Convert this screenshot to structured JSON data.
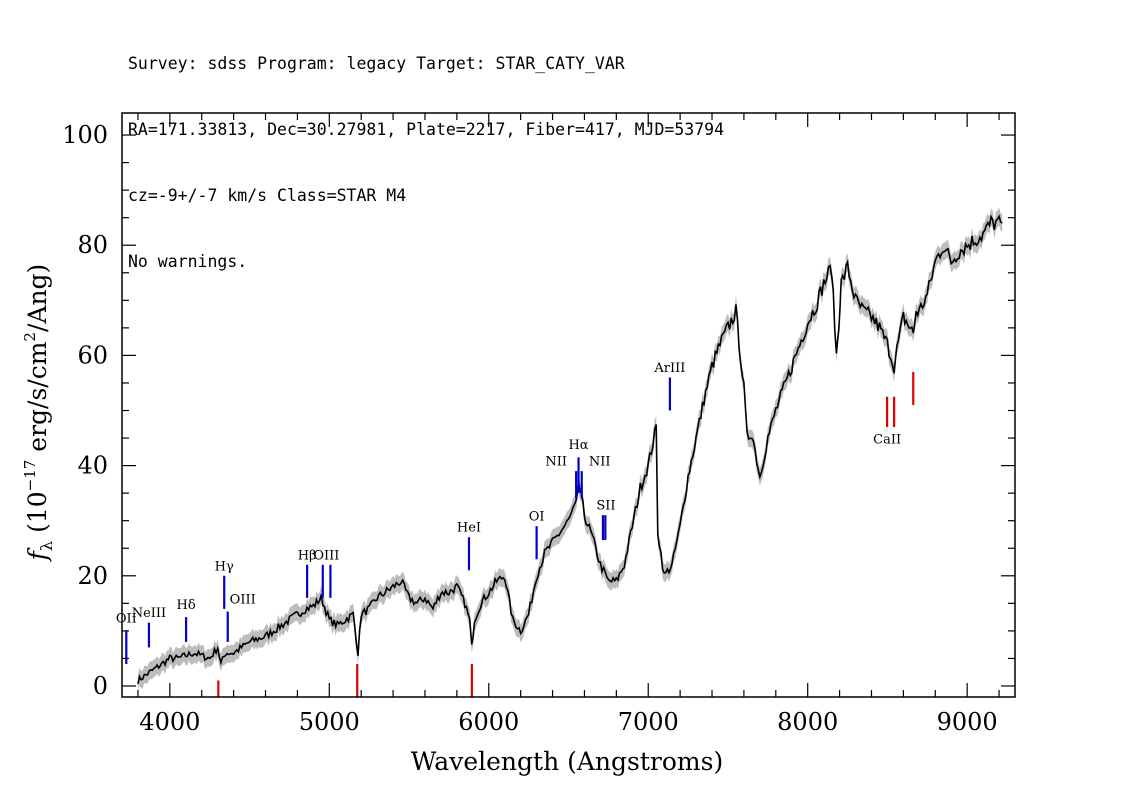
{
  "header": {
    "line1": "Survey: sdss Program: legacy Target: STAR_CATY_VAR",
    "line2": "RA=171.33813, Dec=30.27981, Plate=2217, Fiber=417, MJD=53794",
    "line3": "cz=-9+/-7 km/s Class=STAR M4",
    "line4": "No warnings."
  },
  "colors": {
    "spectrum": "#000000",
    "error_band": "#bdbdbd",
    "emission_lines": "#0000cc",
    "absorption_lines": "#dd0000",
    "axes": "#000000"
  },
  "chart_data": {
    "type": "line",
    "xlabel": "Wavelength (Angstroms)",
    "ylabel": "f_λ (10^-17 erg/s/cm^2/Ang)",
    "ylabel_parts": {
      "f": "f",
      "sub": "λ",
      "pre": "(10",
      "exp1": "−17",
      "mid": " erg/s/cm",
      "exp2": "2",
      "post": "/Ang)"
    },
    "xlim": [
      3700,
      9300
    ],
    "ylim": [
      -2,
      104
    ],
    "xticks": [
      4000,
      5000,
      6000,
      7000,
      8000,
      9000
    ],
    "yticks": [
      0,
      20,
      40,
      60,
      80,
      100
    ],
    "grid": false,
    "spectrum": {
      "x": [
        3800,
        3850,
        3900,
        3950,
        4000,
        4050,
        4100,
        4150,
        4200,
        4250,
        4300,
        4320,
        4350,
        4400,
        4450,
        4500,
        4550,
        4600,
        4650,
        4700,
        4750,
        4800,
        4850,
        4900,
        4950,
        5000,
        5050,
        5100,
        5150,
        5180,
        5200,
        5250,
        5300,
        5350,
        5400,
        5450,
        5500,
        5550,
        5600,
        5650,
        5700,
        5750,
        5800,
        5850,
        5880,
        5893,
        5910,
        5950,
        6000,
        6050,
        6100,
        6150,
        6200,
        6250,
        6300,
        6350,
        6400,
        6450,
        6500,
        6550,
        6563,
        6600,
        6650,
        6700,
        6750,
        6800,
        6850,
        6900,
        6950,
        7000,
        7050,
        7060,
        7080,
        7100,
        7150,
        7200,
        7250,
        7300,
        7350,
        7400,
        7450,
        7500,
        7550,
        7600,
        7620,
        7650,
        7700,
        7750,
        7800,
        7850,
        7900,
        7950,
        8000,
        8050,
        8100,
        8150,
        8180,
        8195,
        8210,
        8250,
        8300,
        8350,
        8400,
        8450,
        8500,
        8542,
        8560,
        8600,
        8662,
        8680,
        8700,
        8750,
        8800,
        8850,
        8900,
        8950,
        9000,
        9050,
        9100,
        9150,
        9200,
        9220
      ],
      "y": [
        1,
        2,
        3,
        4,
        5,
        5,
        5.5,
        6,
        5.5,
        5,
        7,
        4,
        6,
        6,
        7,
        8,
        8.5,
        9,
        10,
        11,
        12,
        13,
        14,
        14.5,
        16,
        12,
        11,
        12,
        13,
        6,
        13,
        14,
        16,
        17,
        18,
        19,
        16,
        15,
        16,
        14,
        17,
        17,
        18,
        15,
        12,
        7,
        12,
        15,
        17,
        19,
        20,
        12,
        10,
        13,
        20,
        24,
        26,
        28,
        30,
        33,
        37,
        31,
        27,
        22,
        19,
        19,
        22,
        29,
        36,
        40,
        47,
        28,
        24,
        20,
        22,
        29,
        38,
        45,
        52,
        58,
        62,
        65,
        68,
        54,
        45,
        46,
        38,
        45,
        50,
        54,
        58,
        62,
        66,
        69,
        73,
        76,
        60,
        66,
        73,
        76,
        70,
        68,
        67,
        65,
        62,
        58,
        61,
        67,
        64,
        68,
        68,
        71,
        77,
        80,
        77,
        79,
        80,
        81,
        82,
        84,
        84,
        84
      ],
      "error_halfwidth": 1.6
    },
    "line_markers": [
      {
        "label": "OII",
        "x": 3727,
        "kind": "emission",
        "y0": 4,
        "y1": 10,
        "label_y": 11.5
      },
      {
        "label": "NeIII",
        "x": 3869,
        "kind": "emission",
        "y0": 7,
        "y1": 11.5,
        "label_y": 12.5
      },
      {
        "label": "Hδ",
        "x": 4102,
        "kind": "emission",
        "y0": 8,
        "y1": 12.5,
        "label_y": 14
      },
      {
        "label": "Hγ",
        "x": 4341,
        "kind": "emission",
        "y0": 14,
        "y1": 20,
        "label_y": 21
      },
      {
        "label": "OIII",
        "x": 4363,
        "kind": "emission",
        "y0": 8,
        "y1": 13.5,
        "label_y": 15,
        "label_dx": 15
      },
      {
        "label": "Hβ",
        "x": 4861,
        "kind": "emission",
        "y0": 16,
        "y1": 22,
        "label_y": 23
      },
      {
        "label": "OIII",
        "x": 4959,
        "kind": "emission",
        "y0": 16,
        "y1": 22,
        "label_y": -1
      },
      {
        "label": "OIII",
        "x": 5007,
        "kind": "emission",
        "y0": 16,
        "y1": 22,
        "label_y": 23,
        "label_dx": -4
      },
      {
        "label": "HeI",
        "x": 5876,
        "kind": "emission",
        "y0": 21,
        "y1": 27,
        "label_y": 28
      },
      {
        "label": "OI",
        "x": 6300,
        "kind": "emission",
        "y0": 23,
        "y1": 29,
        "label_y": 30
      },
      {
        "label": "NII",
        "x": 6548,
        "kind": "emission",
        "y0": 34,
        "y1": 39,
        "label_y": 40,
        "label_dx": -20
      },
      {
        "label": "Hα",
        "x": 6563,
        "kind": "emission",
        "y0": 35,
        "y1": 41.5,
        "label_y": 43
      },
      {
        "label": "NII",
        "x": 6583,
        "kind": "emission",
        "y0": 34,
        "y1": 39,
        "label_y": 40,
        "label_dx": 18
      },
      {
        "label": "SII",
        "x": 6716,
        "kind": "emission",
        "y0": 26.5,
        "y1": 31,
        "label_y": 32,
        "label_dx": 3
      },
      {
        "label": "SII",
        "x": 6731,
        "kind": "emission",
        "y0": 26.5,
        "y1": 31,
        "label_y": -1
      },
      {
        "label": "ArIII",
        "x": 7136,
        "kind": "emission",
        "y0": 50,
        "y1": 56,
        "label_y": 57
      },
      {
        "label": "",
        "x": 4304,
        "kind": "absorption",
        "y0": -2,
        "y1": 1
      },
      {
        "label": "",
        "x": 5175,
        "kind": "absorption",
        "y0": -2,
        "y1": 4
      },
      {
        "label": "",
        "x": 5894,
        "kind": "absorption",
        "y0": -2,
        "y1": 4
      },
      {
        "label": "CaII",
        "x": 8498,
        "kind": "absorption",
        "y0": 47,
        "y1": 52.5,
        "label_y": 44
      },
      {
        "label": "",
        "x": 8542,
        "kind": "absorption",
        "y0": 47,
        "y1": 52.5
      },
      {
        "label": "",
        "x": 8662,
        "kind": "absorption",
        "y0": 51,
        "y1": 57
      }
    ]
  }
}
